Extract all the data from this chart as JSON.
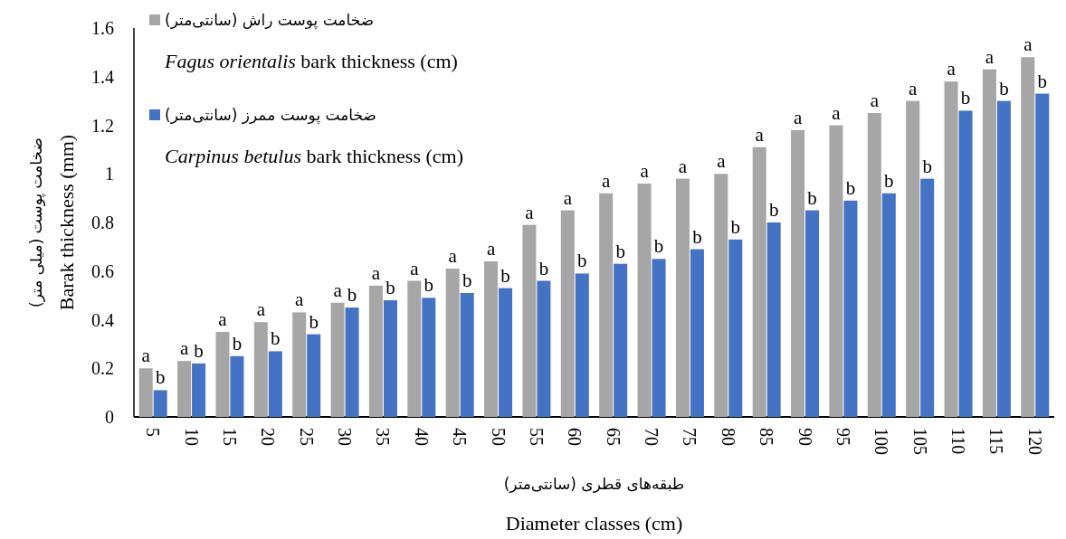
{
  "chart_data": {
    "type": "bar",
    "xlabel": "Diameter classes (cm)",
    "ylabel": "Barak thickness (mm)",
    "categories": [
      "5",
      "10",
      "15",
      "20",
      "25",
      "30",
      "35",
      "40",
      "45",
      "50",
      "55",
      "60",
      "65",
      "70",
      "75",
      "80",
      "85",
      "90",
      "95",
      "100",
      "105",
      "110",
      "115",
      "120"
    ],
    "series": [
      {
        "name": "ضخامت پوست راش (سانتی‌متر)",
        "color": "#a6a6a6",
        "values": [
          0.2,
          0.23,
          0.35,
          0.39,
          0.43,
          0.47,
          0.54,
          0.56,
          0.61,
          0.64,
          0.79,
          0.85,
          0.92,
          0.96,
          0.98,
          1.0,
          1.11,
          1.18,
          1.2,
          1.25,
          1.3,
          1.38,
          1.43,
          1.48
        ],
        "value_labels": [
          "a",
          "a",
          "a",
          "a",
          "a",
          "a",
          "a",
          "a",
          "a",
          "a",
          "a",
          "a",
          "a",
          "a",
          "a",
          "a",
          "a",
          "a",
          "a",
          "a",
          "a",
          "a",
          "a",
          "a"
        ]
      },
      {
        "name": "ضخامت پوست ممرز (سانتی‌متر)",
        "color": "#4472c4",
        "values": [
          0.11,
          0.22,
          0.25,
          0.27,
          0.34,
          0.45,
          0.48,
          0.49,
          0.51,
          0.53,
          0.56,
          0.59,
          0.63,
          0.65,
          0.69,
          0.73,
          0.8,
          0.85,
          0.89,
          0.92,
          0.98,
          1.26,
          1.3,
          1.33
        ],
        "value_labels": [
          "b",
          "b",
          "b",
          "b",
          "b",
          "b",
          "b",
          "b",
          "b",
          "b",
          "b",
          "b",
          "b",
          "b",
          "b",
          "b",
          "b",
          "b",
          "b",
          "b",
          "b",
          "b",
          "b",
          "b"
        ]
      }
    ],
    "ylim": [
      0,
      1.6
    ],
    "yticks": [
      0,
      0.2,
      0.4,
      0.6,
      0.8,
      1,
      1.2,
      1.4,
      1.6
    ],
    "legend": "top left",
    "annotations": [
      "طبقه‌های قطری (سانتی‌متر)",
      "ضخامت پوست (میلی متر)",
      "*Fagus orientalis* bark thickness (cm)",
      "*Carpinus betulus* bark thickness (cm)"
    ]
  }
}
